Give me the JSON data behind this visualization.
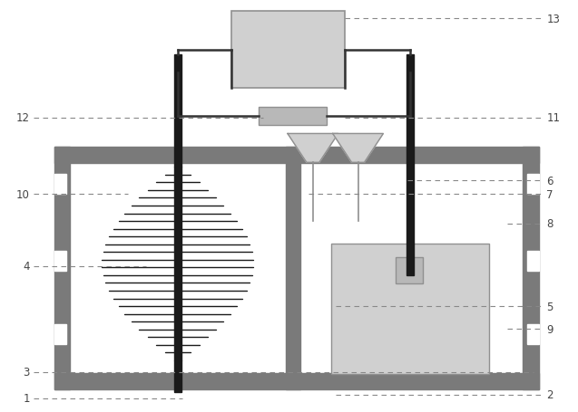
{
  "bg_color": "#ffffff",
  "gray_dark": "#7a7a7a",
  "gray_mid": "#909090",
  "gray_light": "#b8b8b8",
  "gray_lighter": "#d0d0d0",
  "black": "#1a1a1a",
  "dashed_color": "#888888",
  "wire_color": "#333333",
  "fig_width": 6.37,
  "fig_height": 4.56
}
